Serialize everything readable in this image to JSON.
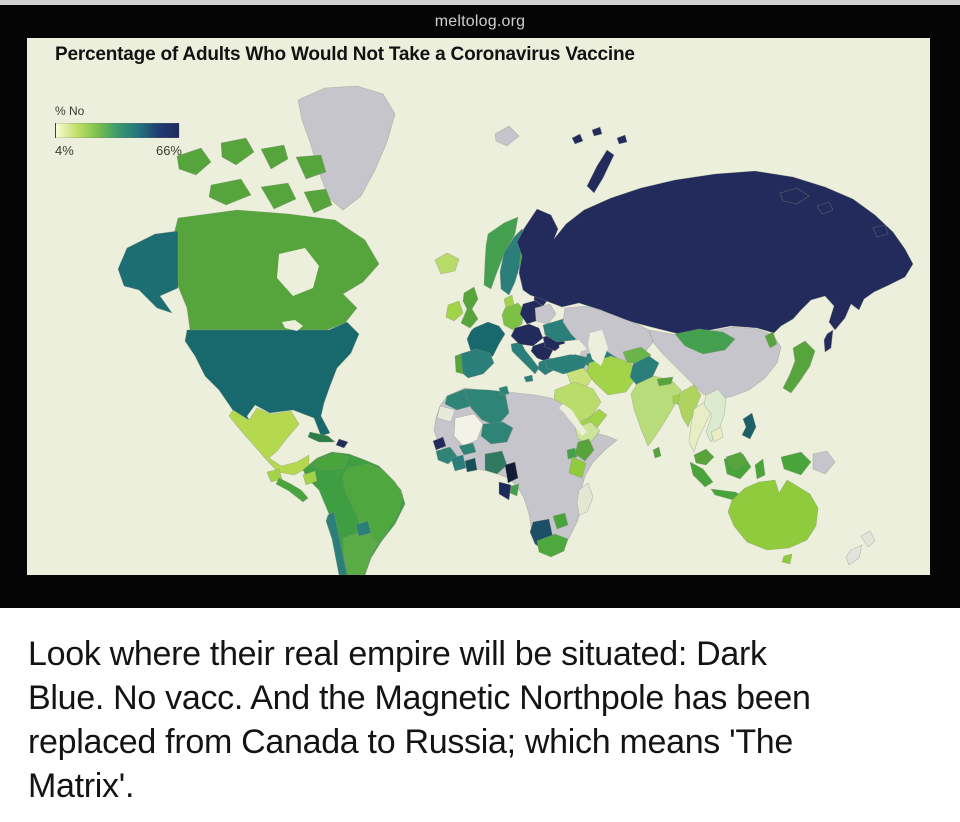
{
  "site_bar": {
    "site_label": "meltolog.org"
  },
  "map_panel": {
    "title": "Percentage of Adults Who Would Not Take a Coronavirus Vaccine",
    "legend": {
      "label": "% No",
      "min_label": "4%",
      "max_label": "66%"
    }
  },
  "caption": {
    "full_text": "Look where their real empire will be situated: Dark Blue. No vacc. And the Magnetic Northpole has been replaced from Canada to Russia; which means 'The Matrix'.",
    "lines": [
      "Look where their real empire will be situated: Dark",
      "Blue. No vacc. And the Magnetic Northpole has been",
      "replaced from Canada to Russia; which means 'The",
      "Matrix'."
    ]
  },
  "chart_data": {
    "type": "choropleth",
    "title": "Percentage of Adults Who Would Not Take a Coronavirus Vaccine",
    "legend_label": "% No",
    "scale": {
      "min_label": "4%",
      "max_label": "66%",
      "gradient_stops": [
        "#fafbd8",
        "#c2e06a",
        "#7cc24c",
        "#3b9a6e",
        "#23767c",
        "#223d72",
        "#202a5c"
      ],
      "no_data_color": "#c6c5cb",
      "background_color": "#ecefdc"
    },
    "regions": {
      "greenland": "#c6c5cb",
      "svalbard": "#c6c5cb",
      "franz_josef": "#222b5c",
      "canada": "#55a43c",
      "alaska": "#1d6e72",
      "usa": "#17696d",
      "mexico": "#b5d94e",
      "guatemala": "#a2d348",
      "central_america": "#4aa43c",
      "cuba": "#2e7d46",
      "hispaniola": "#222b5c",
      "south_america": "#3f9e42",
      "venezuela": "#4aa43c",
      "brazil": "#4fa83e",
      "ecuador": "#a2d348",
      "chile": "#2b7f7a",
      "argentina": "#5aaa46",
      "paraguay": "#2b7f7a",
      "iceland": "#b8dc6a",
      "ireland": "#a2d348",
      "uk": "#57a43c",
      "norway": "#44a04f",
      "sweden": "#2b7f7a",
      "finland": "#57a43c",
      "denmark": "#a2d348",
      "germany": "#7cc143",
      "france": "#17696d",
      "spain": "#2b7f7a",
      "portugal": "#57a43c",
      "italy": "#2b7f7a",
      "poland": "#222b5c",
      "baltics": "#222b5c",
      "belarus": "#c6c5cb",
      "central_europe": "#222b5c",
      "balkans": "#222b5c",
      "romania": "#222b5c",
      "greece": "#2b7f7a",
      "ukraine": "#2b7f7a",
      "russia": "#222b5c",
      "kazakhstan": "#c6c5cb",
      "turkmenistan": "#2b7f7a",
      "china": "#c6c5cb",
      "mongolia": "#44a04f",
      "south_korea": "#57a43c",
      "japan": "#57a43c",
      "turkey": "#2b7f7a",
      "iraq": "#c9e27c",
      "saudi_arabia": "#b9dc6a",
      "yemen_oman": "#a2d348",
      "iran": "#a2d348",
      "afghanistan": "#6ab54a",
      "pakistan": "#2b7f7a",
      "india": "#b9dc7a",
      "sri_lanka": "#57a43c",
      "bangladesh": "#a2d348",
      "nepal": "#57a43c",
      "myanmar": "#aed45f",
      "thailand": "#e9edc4",
      "vietnam": "#dcead0",
      "cambodia": "#e9edc4",
      "malaysia": "#57a43c",
      "indonesia": "#4aa43c",
      "philippines": "#1c5f66",
      "png_west": "#4aa43c",
      "png_east": "#c6c5cb",
      "australia": "#8fcb3c",
      "new_zealand": "#e3e4dc",
      "africa_nodata": "#c6c5cb",
      "morocco": "#2e8577",
      "algeria": "#2e8577",
      "tunisia": "#2e8577",
      "western_sahara": "#e8e9db",
      "mali": "#f2f3e6",
      "niger": "#2e8577",
      "senegal": "#222b5c",
      "guinea": "#2e8577",
      "ivory_coast": "#2b7f7a",
      "ghana": "#174f58",
      "burkina_faso": "#2e8577",
      "nigeria": "#317a62",
      "cameroon": "#131c36",
      "gabon": "#1e2a5c",
      "congo": "#44a04f",
      "ethiopia": "#cde59a",
      "uganda": "#44a04f",
      "kenya": "#57a43c",
      "tanzania": "#8fcb3c",
      "zimbabwe": "#4aa43c",
      "namibia": "#1d4f66",
      "south_africa": "#4fa83e",
      "madagascar": "#e4e7d2",
      "water": "#ecefdc"
    }
  }
}
